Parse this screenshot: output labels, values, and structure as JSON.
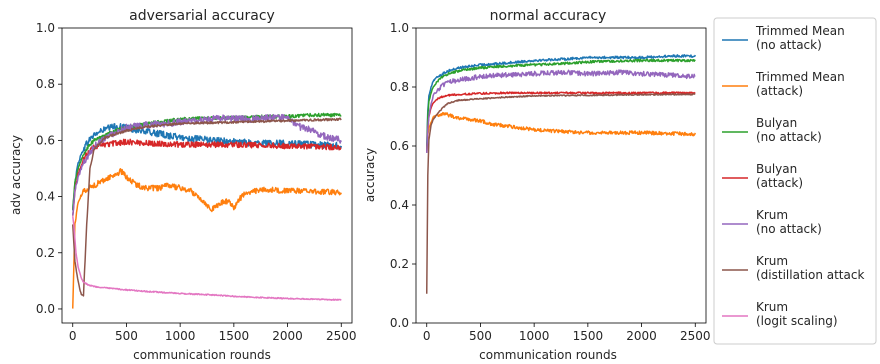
{
  "legend": {
    "entries": [
      {
        "label": [
          "Trimmed Mean",
          "(no attack)"
        ],
        "color": "#1f77b4"
      },
      {
        "label": [
          "Trimmed Mean",
          "(attack)"
        ],
        "color": "#ff7f0e"
      },
      {
        "label": [
          "Bulyan",
          "(no attack)"
        ],
        "color": "#2ca02c"
      },
      {
        "label": [
          "Bulyan",
          "(attack)"
        ],
        "color": "#d62728"
      },
      {
        "label": [
          "Krum",
          "(no attack)"
        ],
        "color": "#9467bd"
      },
      {
        "label": [
          "Krum",
          "(distillation attack"
        ],
        "color": "#8c564b"
      },
      {
        "label": [
          "Krum",
          "(logit scaling)"
        ],
        "color": "#e377c2"
      }
    ]
  },
  "chart_data": [
    {
      "type": "line",
      "title": "adversarial accuracy",
      "xlabel": "communication rounds",
      "ylabel": "adv accuracy",
      "xlim": [
        -100,
        2600
      ],
      "ylim": [
        -0.05,
        1.0
      ],
      "xticks": [
        0,
        500,
        1000,
        1500,
        2000,
        2500
      ],
      "xtick_labels": [
        "0",
        "500",
        "1000",
        "1500",
        "2000",
        "2500"
      ],
      "yticks": [
        0.0,
        0.2,
        0.4,
        0.6,
        0.8,
        1.0
      ],
      "ytick_labels": [
        "0.0",
        "0.2",
        "0.4",
        "0.6",
        "0.8",
        "1.0"
      ],
      "grid": false,
      "series": [
        {
          "name": "Trimmed Mean (no attack)",
          "color": "#1f77b4",
          "noise": 0.012,
          "x": [
            0,
            20,
            50,
            100,
            150,
            200,
            300,
            400,
            500,
            700,
            1000,
            1300,
            1500,
            1700,
            2000,
            2200,
            2500
          ],
          "y": [
            0.35,
            0.45,
            0.52,
            0.57,
            0.6,
            0.62,
            0.64,
            0.65,
            0.645,
            0.63,
            0.61,
            0.6,
            0.595,
            0.59,
            0.59,
            0.585,
            0.58
          ]
        },
        {
          "name": "Trimmed Mean (attack)",
          "color": "#ff7f0e",
          "noise": 0.01,
          "x": [
            0,
            20,
            50,
            100,
            200,
            300,
            400,
            450,
            500,
            600,
            700,
            800,
            900,
            1000,
            1100,
            1200,
            1250,
            1300,
            1350,
            1400,
            1450,
            1500,
            1550,
            1600,
            1700,
            1800,
            2000,
            2200,
            2500
          ],
          "y": [
            0.0,
            0.3,
            0.38,
            0.42,
            0.44,
            0.46,
            0.48,
            0.49,
            0.47,
            0.44,
            0.43,
            0.43,
            0.44,
            0.43,
            0.42,
            0.39,
            0.37,
            0.355,
            0.37,
            0.38,
            0.385,
            0.36,
            0.39,
            0.41,
            0.42,
            0.425,
            0.42,
            0.42,
            0.415
          ]
        },
        {
          "name": "Bulyan (no attack)",
          "color": "#2ca02c",
          "noise": 0.006,
          "x": [
            0,
            20,
            50,
            100,
            150,
            200,
            300,
            400,
            500,
            700,
            1000,
            1300,
            1500,
            1800,
            2000,
            2200,
            2500
          ],
          "y": [
            0.35,
            0.45,
            0.5,
            0.55,
            0.58,
            0.6,
            0.62,
            0.635,
            0.645,
            0.66,
            0.675,
            0.68,
            0.68,
            0.685,
            0.685,
            0.69,
            0.69
          ]
        },
        {
          "name": "Bulyan (attack)",
          "color": "#d62728",
          "noise": 0.01,
          "x": [
            0,
            20,
            50,
            100,
            150,
            200,
            300,
            400,
            500,
            700,
            1000,
            1300,
            1500,
            2000,
            2500
          ],
          "y": [
            0.33,
            0.42,
            0.48,
            0.53,
            0.56,
            0.575,
            0.585,
            0.59,
            0.595,
            0.59,
            0.585,
            0.585,
            0.585,
            0.58,
            0.575
          ]
        },
        {
          "name": "Krum (no attack)",
          "color": "#9467bd",
          "noise": 0.012,
          "x": [
            0,
            20,
            50,
            100,
            150,
            200,
            300,
            400,
            500,
            700,
            1000,
            1200,
            1400,
            1600,
            1800,
            2000,
            2100,
            2200,
            2300,
            2500
          ],
          "y": [
            0.33,
            0.42,
            0.47,
            0.52,
            0.55,
            0.58,
            0.61,
            0.63,
            0.645,
            0.655,
            0.665,
            0.67,
            0.68,
            0.675,
            0.68,
            0.68,
            0.65,
            0.64,
            0.62,
            0.6
          ]
        },
        {
          "name": "Krum (distillation attack",
          "color": "#8c564b",
          "noise": 0.004,
          "x": [
            0,
            20,
            40,
            60,
            80,
            100,
            130,
            160,
            200,
            300,
            500,
            700,
            1000,
            1500,
            2000,
            2500
          ],
          "y": [
            0.3,
            0.17,
            0.12,
            0.08,
            0.05,
            0.05,
            0.3,
            0.5,
            0.57,
            0.61,
            0.635,
            0.65,
            0.66,
            0.665,
            0.67,
            0.675
          ]
        },
        {
          "name": "Krum (logit scaling)",
          "color": "#e377c2",
          "noise": 0.002,
          "x": [
            0,
            10,
            20,
            30,
            50,
            80,
            100,
            150,
            200,
            300,
            500,
            700,
            1000,
            1300,
            1500,
            1800,
            2000,
            2300,
            2500
          ],
          "y": [
            0.33,
            0.3,
            0.25,
            0.2,
            0.15,
            0.11,
            0.095,
            0.085,
            0.08,
            0.075,
            0.068,
            0.062,
            0.055,
            0.05,
            0.045,
            0.04,
            0.037,
            0.034,
            0.032
          ]
        }
      ]
    },
    {
      "type": "line",
      "title": "normal accuracy",
      "xlabel": "communication rounds",
      "ylabel": "accuracy",
      "xlim": [
        -100,
        2600
      ],
      "ylim": [
        0.0,
        1.0
      ],
      "xticks": [
        0,
        500,
        1000,
        1500,
        2000,
        2500
      ],
      "xtick_labels": [
        "0",
        "500",
        "1000",
        "1500",
        "2000",
        "2500"
      ],
      "yticks": [
        0.0,
        0.2,
        0.4,
        0.6,
        0.8,
        1.0
      ],
      "ytick_labels": [
        "0.0",
        "0.2",
        "0.4",
        "0.6",
        "0.8",
        "1.0"
      ],
      "grid": false,
      "series": [
        {
          "name": "Trimmed Mean (no attack)",
          "color": "#1f77b4",
          "noise": 0.004,
          "x": [
            0,
            10,
            20,
            40,
            60,
            100,
            150,
            200,
            300,
            500,
            700,
            1000,
            1300,
            1500,
            1700,
            2000,
            2300,
            2500
          ],
          "y": [
            0.6,
            0.72,
            0.77,
            0.8,
            0.82,
            0.835,
            0.845,
            0.855,
            0.865,
            0.875,
            0.88,
            0.89,
            0.895,
            0.9,
            0.9,
            0.9,
            0.905,
            0.905
          ]
        },
        {
          "name": "Trimmed Mean (attack)",
          "color": "#ff7f0e",
          "noise": 0.006,
          "x": [
            0,
            10,
            20,
            40,
            60,
            100,
            150,
            200,
            300,
            400,
            500,
            600,
            800,
            1000,
            1200,
            1500,
            2000,
            2500
          ],
          "y": [
            0.58,
            0.64,
            0.66,
            0.68,
            0.7,
            0.705,
            0.71,
            0.705,
            0.695,
            0.69,
            0.685,
            0.675,
            0.665,
            0.655,
            0.65,
            0.645,
            0.645,
            0.64
          ]
        },
        {
          "name": "Bulyan (no attack)",
          "color": "#2ca02c",
          "noise": 0.004,
          "x": [
            0,
            10,
            20,
            40,
            60,
            100,
            150,
            200,
            300,
            500,
            700,
            1000,
            1300,
            1500,
            2000,
            2500
          ],
          "y": [
            0.58,
            0.7,
            0.75,
            0.78,
            0.8,
            0.82,
            0.835,
            0.845,
            0.855,
            0.865,
            0.87,
            0.875,
            0.88,
            0.885,
            0.89,
            0.89
          ]
        },
        {
          "name": "Bulyan (attack)",
          "color": "#d62728",
          "noise": 0.003,
          "x": [
            0,
            10,
            20,
            40,
            60,
            100,
            150,
            200,
            300,
            500,
            700,
            1000,
            1500,
            2000,
            2500
          ],
          "y": [
            0.58,
            0.66,
            0.7,
            0.73,
            0.745,
            0.76,
            0.768,
            0.772,
            0.775,
            0.778,
            0.78,
            0.78,
            0.78,
            0.78,
            0.78
          ]
        },
        {
          "name": "Krum (no attack)",
          "color": "#9467bd",
          "noise": 0.008,
          "x": [
            0,
            10,
            20,
            40,
            60,
            100,
            150,
            200,
            300,
            500,
            700,
            1000,
            1300,
            1500,
            1800,
            2000,
            2300,
            2500
          ],
          "y": [
            0.58,
            0.66,
            0.7,
            0.74,
            0.77,
            0.79,
            0.805,
            0.815,
            0.825,
            0.835,
            0.84,
            0.845,
            0.85,
            0.845,
            0.85,
            0.845,
            0.84,
            0.835
          ]
        },
        {
          "name": "Krum (distillation attack",
          "color": "#8c564b",
          "noise": 0.002,
          "x": [
            0,
            10,
            20,
            40,
            60,
            100,
            150,
            200,
            300,
            500,
            700,
            1000,
            1500,
            2000,
            2500
          ],
          "y": [
            0.1,
            0.5,
            0.62,
            0.67,
            0.69,
            0.71,
            0.73,
            0.745,
            0.755,
            0.76,
            0.765,
            0.77,
            0.772,
            0.774,
            0.775
          ]
        }
      ]
    }
  ]
}
